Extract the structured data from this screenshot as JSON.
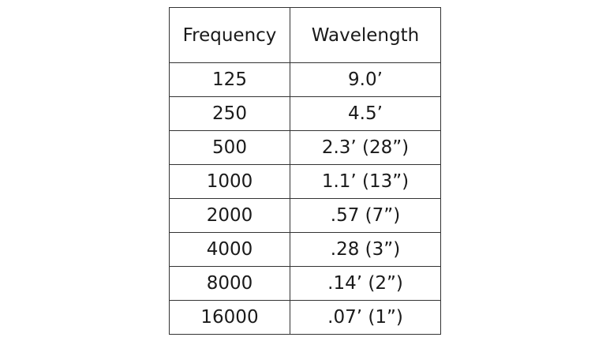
{
  "table": {
    "header": [
      "Frequency",
      "Wavelength"
    ],
    "rows": [
      [
        "125",
        "9.0’"
      ],
      [
        "250",
        "4.5’"
      ],
      [
        "500",
        "2.3’ (28”)"
      ],
      [
        "1000",
        "1.1’ (13”)"
      ],
      [
        "2000",
        ".57 (7”)"
      ],
      [
        "4000",
        ".28 (3”)"
      ],
      [
        "8000",
        ".14’ (2”)"
      ],
      [
        "16000",
        ".07’ (1”)"
      ]
    ]
  }
}
